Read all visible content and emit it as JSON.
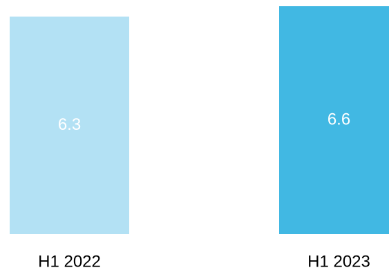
{
  "chart_data": {
    "type": "bar",
    "categories": [
      "H1 2022",
      "H1 2023"
    ],
    "values": [
      6.3,
      6.6
    ],
    "data_labels": [
      "6.3",
      "6.6"
    ],
    "colors": [
      "#b3e1f4",
      "#41b8e3"
    ],
    "label_color": "#ffffff",
    "category_label_color": "#000000",
    "title": "",
    "xlabel": "",
    "ylabel": "",
    "grid": false,
    "axes_visible": false,
    "ylim": [
      0,
      6.6
    ]
  }
}
